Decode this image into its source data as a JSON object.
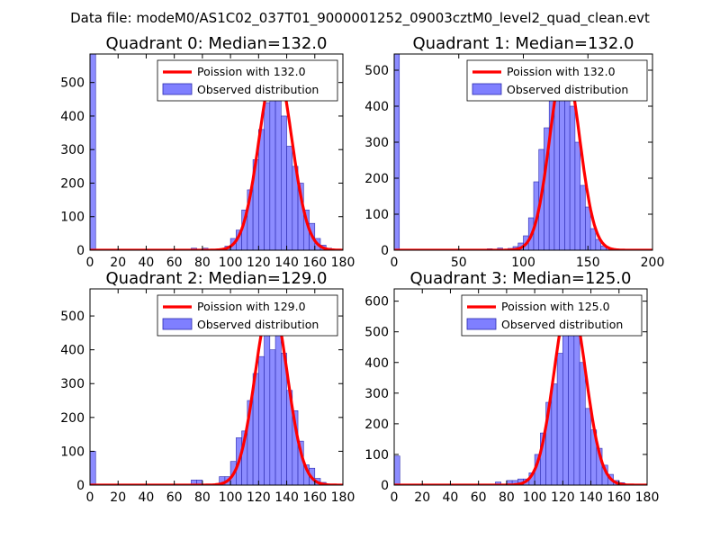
{
  "figure": {
    "suptitle": "Data file: modeM0/AS1C02_037T01_9000001252_09003cztM0_level2_quad_clean.evt"
  },
  "colors": {
    "poisson_line": "#ff0000",
    "bar_fill": "#7f7fff",
    "bar_edge": "#2b2bb0",
    "axes": "#000000"
  },
  "chart_data": [
    {
      "type": "bar",
      "title": "Quadrant 0: Median=132.0",
      "xlim": [
        0,
        180
      ],
      "ylim": [
        0,
        585
      ],
      "xticks": [
        0,
        20,
        40,
        60,
        80,
        100,
        120,
        140,
        160,
        180
      ],
      "yticks": [
        0,
        100,
        200,
        300,
        400,
        500
      ],
      "legend": {
        "position": "top-right",
        "entries": [
          "Poission with 132.0",
          "Observed distribution"
        ]
      },
      "histogram": {
        "bin_edges": [
          0,
          4,
          8,
          12,
          16,
          20,
          24,
          28,
          32,
          36,
          40,
          44,
          48,
          52,
          56,
          60,
          64,
          68,
          72,
          76,
          80,
          84,
          88,
          92,
          96,
          100,
          104,
          108,
          112,
          116,
          120,
          124,
          128,
          132,
          136,
          140,
          144,
          148,
          152,
          156,
          160,
          164,
          168,
          172,
          176
        ],
        "counts": [
          585,
          2,
          2,
          2,
          2,
          2,
          2,
          2,
          2,
          2,
          2,
          2,
          2,
          2,
          2,
          2,
          2,
          2,
          6,
          2,
          6,
          2,
          2,
          2,
          12,
          35,
          60,
          120,
          180,
          270,
          360,
          440,
          530,
          460,
          400,
          310,
          250,
          200,
          120,
          80,
          35,
          15,
          6,
          2
        ]
      },
      "poisson": {
        "mean": 132.0,
        "peak": 555
      }
    },
    {
      "type": "bar",
      "title": "Quadrant 1: Median=132.0",
      "xlim": [
        0,
        200
      ],
      "ylim": [
        0,
        545
      ],
      "xticks": [
        0,
        50,
        100,
        150,
        200
      ],
      "yticks": [
        0,
        100,
        200,
        300,
        400,
        500
      ],
      "legend": {
        "position": "top-right",
        "entries": [
          "Poission with 132.0",
          "Observed distribution"
        ]
      },
      "histogram": {
        "bin_edges": [
          0,
          4,
          8,
          12,
          16,
          20,
          24,
          28,
          32,
          36,
          40,
          44,
          48,
          52,
          56,
          60,
          64,
          68,
          72,
          76,
          80,
          84,
          88,
          92,
          96,
          100,
          104,
          108,
          112,
          116,
          120,
          124,
          128,
          132,
          136,
          140,
          144,
          148,
          152,
          156,
          160,
          164,
          168,
          172,
          176,
          180,
          184,
          188
        ],
        "counts": [
          545,
          2,
          2,
          2,
          2,
          2,
          2,
          2,
          2,
          2,
          2,
          2,
          2,
          2,
          2,
          2,
          2,
          2,
          4,
          2,
          6,
          2,
          5,
          10,
          20,
          40,
          90,
          190,
          280,
          340,
          450,
          490,
          480,
          440,
          400,
          300,
          180,
          120,
          60,
          30,
          12,
          6,
          4,
          2,
          2,
          2,
          2
        ]
      },
      "poisson": {
        "mean": 132.0,
        "peak": 520
      }
    },
    {
      "type": "bar",
      "title": "Quadrant 2: Median=129.0",
      "xlim": [
        0,
        180
      ],
      "ylim": [
        0,
        580
      ],
      "xticks": [
        0,
        20,
        40,
        60,
        80,
        100,
        120,
        140,
        160,
        180
      ],
      "yticks": [
        0,
        100,
        200,
        300,
        400,
        500
      ],
      "legend": {
        "position": "top-right",
        "entries": [
          "Poission with 129.0",
          "Observed distribution"
        ]
      },
      "histogram": {
        "bin_edges": [
          0,
          4,
          8,
          12,
          16,
          20,
          24,
          28,
          32,
          36,
          40,
          44,
          48,
          52,
          56,
          60,
          64,
          68,
          72,
          76,
          80,
          84,
          88,
          92,
          96,
          100,
          104,
          108,
          112,
          116,
          120,
          124,
          128,
          132,
          136,
          140,
          144,
          148,
          152,
          156,
          160,
          164,
          168,
          172,
          176
        ],
        "counts": [
          100,
          2,
          2,
          2,
          2,
          2,
          2,
          2,
          2,
          2,
          2,
          2,
          2,
          2,
          2,
          2,
          2,
          2,
          15,
          15,
          2,
          2,
          2,
          25,
          25,
          70,
          140,
          160,
          250,
          330,
          380,
          480,
          400,
          530,
          390,
          280,
          220,
          130,
          60,
          50,
          20,
          8,
          2,
          2
        ]
      },
      "poisson": {
        "mean": 129.0,
        "peak": 545
      }
    },
    {
      "type": "bar",
      "title": "Quadrant 3: Median=125.0",
      "xlim": [
        0,
        180
      ],
      "ylim": [
        0,
        640
      ],
      "xticks": [
        0,
        20,
        40,
        60,
        80,
        100,
        120,
        140,
        160,
        180
      ],
      "yticks": [
        0,
        100,
        200,
        300,
        400,
        500,
        600
      ],
      "legend": {
        "position": "top-right",
        "entries": [
          "Poission with 125.0",
          "Observed distribution"
        ]
      },
      "histogram": {
        "bin_edges": [
          0,
          4,
          8,
          12,
          16,
          20,
          24,
          28,
          32,
          36,
          40,
          44,
          48,
          52,
          56,
          60,
          64,
          68,
          72,
          76,
          80,
          84,
          88,
          92,
          96,
          100,
          104,
          108,
          112,
          116,
          120,
          124,
          128,
          132,
          136,
          140,
          144,
          148,
          152,
          156,
          160,
          164,
          168,
          172
        ],
        "counts": [
          95,
          2,
          2,
          2,
          2,
          2,
          2,
          2,
          2,
          2,
          2,
          2,
          2,
          2,
          2,
          2,
          2,
          2,
          10,
          2,
          15,
          15,
          20,
          20,
          40,
          100,
          170,
          270,
          330,
          430,
          540,
          520,
          560,
          400,
          250,
          180,
          120,
          65,
          35,
          15,
          8,
          2,
          2
        ]
      },
      "poisson": {
        "mean": 125.0,
        "peak": 610
      }
    }
  ]
}
